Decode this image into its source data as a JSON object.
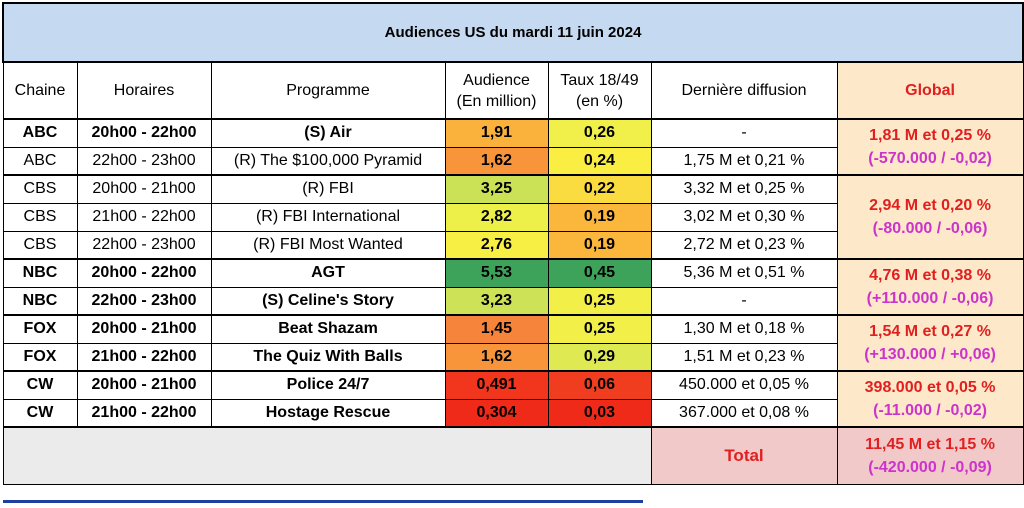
{
  "title": "Audiences US du mardi 11 juin 2024",
  "headers": {
    "chaine": "Chaine",
    "horaires": "Horaires",
    "programme": "Programme",
    "audience_l1": "Audience",
    "audience_l2": "(En million)",
    "taux_l1": "Taux 18/49",
    "taux_l2": "(en %)",
    "derniere": "Dernière diffusion",
    "global": "Global"
  },
  "colors": {
    "title_bg": "#c5d9f1",
    "global_bg": "#fde9c9",
    "total_bg": "#f2c9c9",
    "accent_red": "#e02020",
    "accent_magenta": "#cc33cc"
  },
  "rows": [
    {
      "chaine": "ABC",
      "horaires": "20h00 - 22h00",
      "programme": "(S) Air",
      "audience": "1,91",
      "taux": "0,26",
      "derniere": "-",
      "bold": true,
      "aud_color": "#fbb23c",
      "taux_color": "#f1ef4a"
    },
    {
      "chaine": "ABC",
      "horaires": "22h00 - 23h00",
      "programme": "(R) The $100,000 Pyramid",
      "audience": "1,62",
      "taux": "0,24",
      "derniere": "1,75 M et 0,21 %",
      "bold": false,
      "aud_color": "#f8953a",
      "taux_color": "#f9ee41"
    },
    {
      "chaine": "CBS",
      "horaires": "20h00 - 21h00",
      "programme": "(R) FBI",
      "audience": "3,25",
      "taux": "0,22",
      "derniere": "3,32 M et 0,25 %",
      "bold": false,
      "aud_color": "#cbe256",
      "taux_color": "#fbdc40"
    },
    {
      "chaine": "CBS",
      "horaires": "21h00 - 22h00",
      "programme": "(R) FBI International",
      "audience": "2,82",
      "taux": "0,19",
      "derniere": "3,02 M et 0,30 %",
      "bold": false,
      "aud_color": "#eef04a",
      "taux_color": "#fbb63c"
    },
    {
      "chaine": "CBS",
      "horaires": "22h00 - 23h00",
      "programme": "(R) FBI Most Wanted",
      "audience": "2,76",
      "taux": "0,19",
      "derniere": "2,72 M et 0,23 %",
      "bold": false,
      "aud_color": "#f7ef43",
      "taux_color": "#fbb63c"
    },
    {
      "chaine": "NBC",
      "horaires": "20h00 - 22h00",
      "programme": "AGT",
      "audience": "5,53",
      "taux": "0,45",
      "derniere": "5,36 M et 0,51 %",
      "bold": true,
      "aud_color": "#3ea35a",
      "taux_color": "#3ea35a"
    },
    {
      "chaine": "NBC",
      "horaires": "22h00 - 23h00",
      "programme": "(S) Celine's Story",
      "audience": "3,23",
      "taux": "0,25",
      "derniere": "-",
      "bold": true,
      "aud_color": "#cde257",
      "taux_color": "#f2ef48"
    },
    {
      "chaine": "FOX",
      "horaires": "20h00 - 21h00",
      "programme": "Beat Shazam",
      "audience": "1,45",
      "taux": "0,25",
      "derniere": "1,30 M et 0,18 %",
      "bold": true,
      "aud_color": "#f6843a",
      "taux_color": "#f2ef48"
    },
    {
      "chaine": "FOX",
      "horaires": "21h00 - 22h00",
      "programme": "The Quiz With Balls",
      "audience": "1,62",
      "taux": "0,29",
      "derniere": "1,51 M et 0,23 %",
      "bold": true,
      "aud_color": "#f8953a",
      "taux_color": "#dfe951"
    },
    {
      "chaine": "CW",
      "horaires": "20h00 - 21h00",
      "programme": "Police 24/7",
      "audience": "0,491",
      "taux": "0,06",
      "derniere": "450.000 et 0,05 %",
      "bold": true,
      "aud_color": "#f2361d",
      "taux_color": "#f03d1f"
    },
    {
      "chaine": "CW",
      "horaires": "21h00 - 22h00",
      "programme": "Hostage Rescue",
      "audience": "0,304",
      "taux": "0,03",
      "derniere": "367.000 et 0,08 %",
      "bold": true,
      "aud_color": "#ef2a18",
      "taux_color": "#ef2a18"
    }
  ],
  "globals": [
    {
      "main": "1,81 M et 0,25 %",
      "diff": "(-570.000 / -0,02)"
    },
    {
      "main": "2,94 M et 0,20 %",
      "diff": "(-80.000 / -0,06)"
    },
    {
      "main": "4,76 M et 0,38 %",
      "diff": "(+110.000  / -0,06)"
    },
    {
      "main": "1,54 M et 0,27 %",
      "diff": "(+130.000 / +0,06)"
    },
    {
      "main": "398.000 et 0,05 %",
      "diff": "(-11.000 / -0,02)"
    }
  ],
  "total": {
    "label": "Total",
    "main": "11,45 M et 1,15 %",
    "diff": "(-420.000 / -0,09)"
  }
}
